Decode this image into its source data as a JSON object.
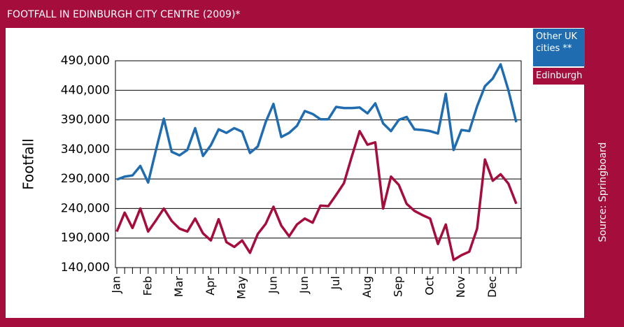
{
  "chart_data": {
    "type": "line",
    "title": "FOOTFALL IN EDINBURGH CITY CENTRE (2009)*",
    "ylabel": "Footfall",
    "source": "Source: Springboard",
    "categories": [
      "Jan",
      null,
      null,
      null,
      "Feb",
      null,
      null,
      null,
      "Mar",
      null,
      null,
      null,
      "Apr",
      null,
      null,
      null,
      "May",
      null,
      null,
      null,
      "Jun",
      null,
      null,
      null,
      "Jun",
      null,
      null,
      null,
      "Jul",
      null,
      null,
      null,
      "Aug",
      null,
      null,
      null,
      "Sep",
      null,
      null,
      null,
      "Oct",
      null,
      null,
      null,
      "Nov",
      null,
      null,
      null,
      "Dec",
      null,
      null,
      null
    ],
    "series": [
      {
        "name": "Other UK cities **",
        "color": "#1f6db0",
        "values": [
          289000,
          294000,
          296000,
          312000,
          284000,
          339000,
          392000,
          336000,
          330000,
          339000,
          376000,
          329000,
          347000,
          374000,
          368000,
          376000,
          370000,
          334000,
          345000,
          386000,
          417000,
          361000,
          368000,
          380000,
          405000,
          400000,
          391000,
          391000,
          412000,
          410000,
          410000,
          411000,
          401000,
          418000,
          384000,
          371000,
          390000,
          395000,
          374000,
          373000,
          371000,
          367000,
          434000,
          339000,
          373000,
          371000,
          413000,
          447000,
          460000,
          484000,
          440000,
          386000
        ]
      },
      {
        "name": "Edinburgh",
        "color": "#a50d3c",
        "values": [
          201000,
          233000,
          207000,
          240000,
          201000,
          220000,
          240000,
          219000,
          206000,
          201000,
          223000,
          198000,
          186000,
          222000,
          183000,
          175000,
          186000,
          165000,
          197000,
          214000,
          243000,
          211000,
          193000,
          213000,
          223000,
          216000,
          245000,
          244000,
          263000,
          283000,
          328000,
          371000,
          348000,
          352000,
          240000,
          294000,
          280000,
          248000,
          236000,
          229000,
          223000,
          180000,
          213000,
          153000,
          161000,
          167000,
          206000,
          323000,
          287000,
          298000,
          282000,
          248000
        ]
      }
    ],
    "ylim": [
      140000,
      490000
    ],
    "yticks": [
      {
        "value": 140000,
        "label": "140,000"
      },
      {
        "value": 190000,
        "label": "190,000"
      },
      {
        "value": 240000,
        "label": "240,000"
      },
      {
        "value": 290000,
        "label": "290,000"
      },
      {
        "value": 340000,
        "label": "340,000"
      },
      {
        "value": 390000,
        "label": "390,000"
      },
      {
        "value": 440000,
        "label": "440,000"
      },
      {
        "value": 490000,
        "label": "490,000"
      }
    ],
    "grid": true
  }
}
